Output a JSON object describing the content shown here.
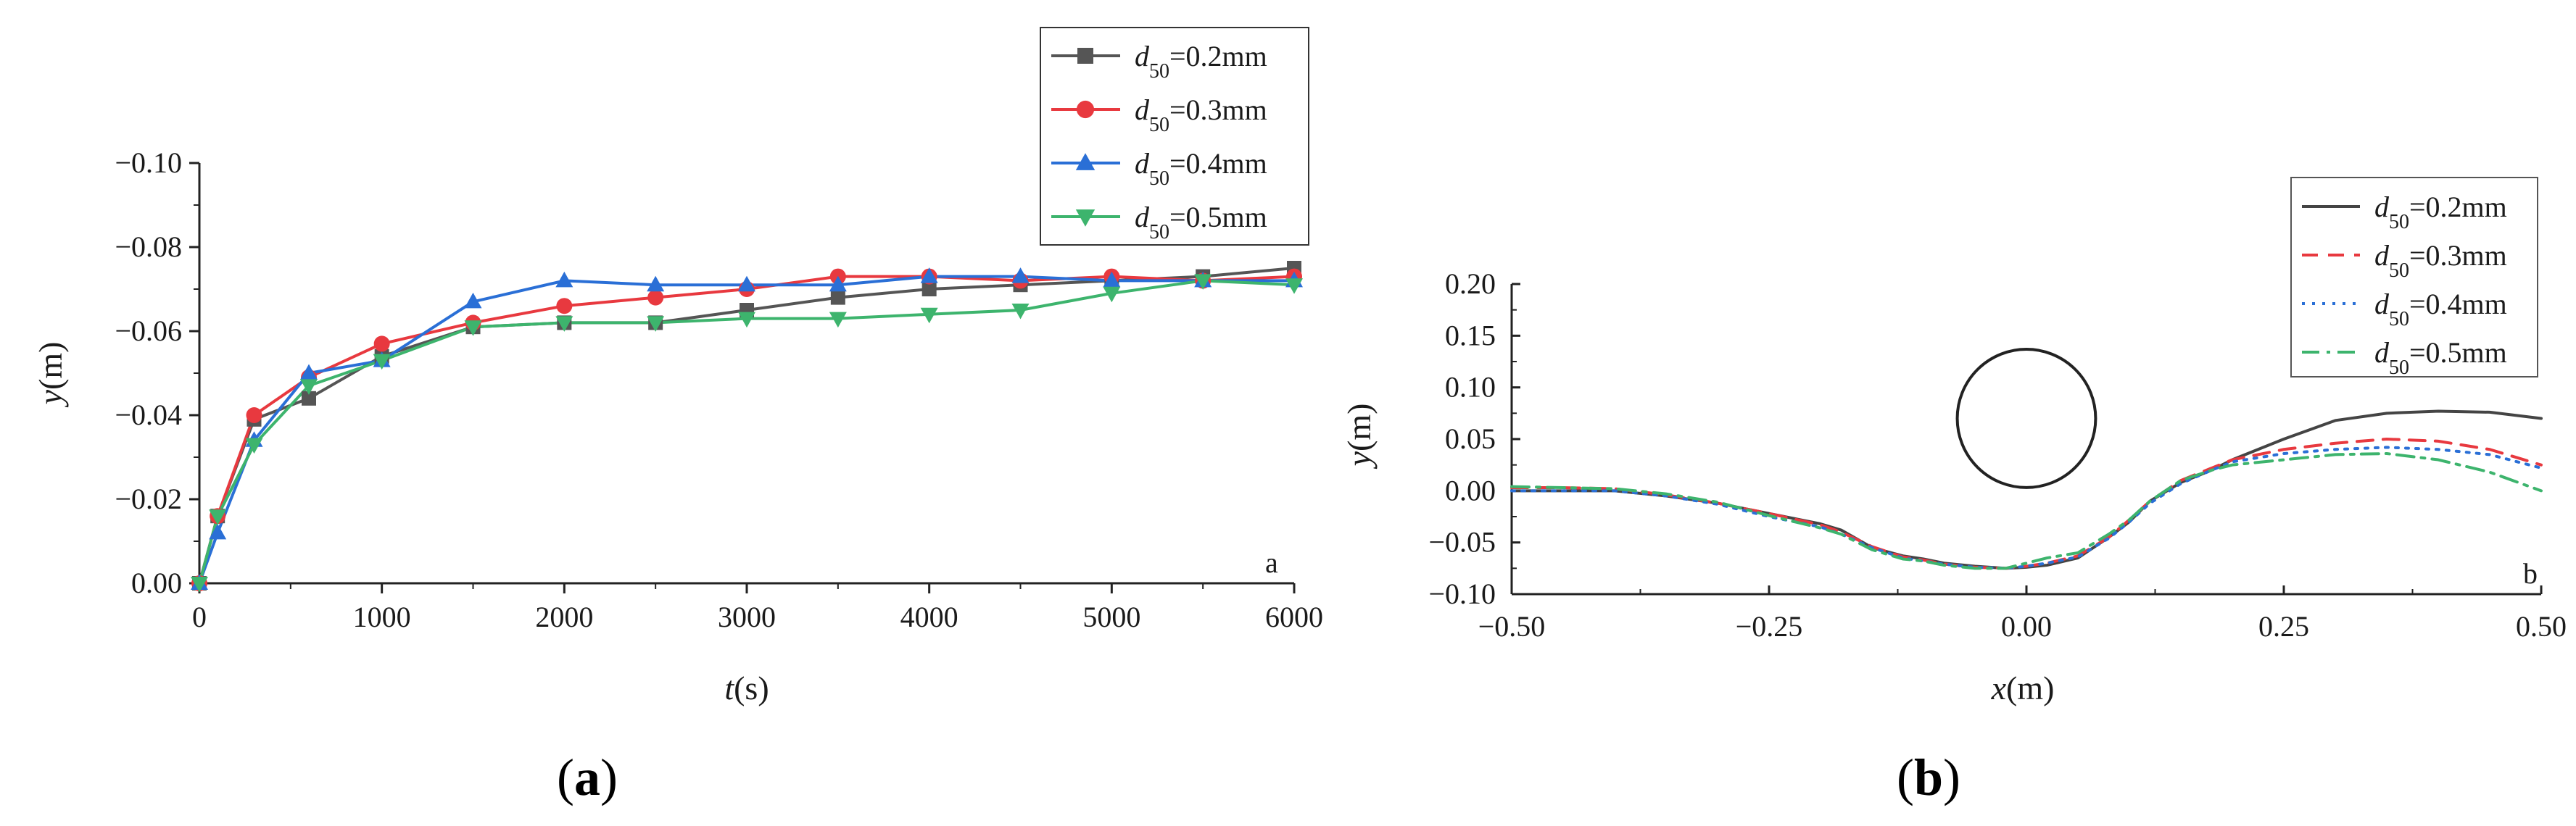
{
  "chart_data": [
    {
      "type": "line",
      "panel_label": "a",
      "caption": "(a)",
      "caption_letter": "a",
      "xlabel_var": "t",
      "xlabel_unit": "(s)",
      "ylabel_var": "y",
      "ylabel_unit": "(m)",
      "xlim": [
        0,
        6000
      ],
      "ylim": [
        0,
        -0.1
      ],
      "xticks": [
        0,
        1000,
        2000,
        3000,
        4000,
        5000,
        6000
      ],
      "xtick_labels": [
        "0",
        "1000",
        "2000",
        "3000",
        "4000",
        "5000",
        "6000"
      ],
      "yticks": [
        0,
        -0.02,
        -0.04,
        -0.06,
        -0.08,
        -0.1
      ],
      "ytick_labels": [
        "0.00",
        "−0.02",
        "−0.04",
        "−0.06",
        "−0.08",
        "−0.10"
      ],
      "legend_position": "top-right",
      "x": [
        0,
        100,
        300,
        600,
        1000,
        1500,
        2000,
        2500,
        3000,
        3500,
        4000,
        4500,
        5000,
        5500,
        6000
      ],
      "series": [
        {
          "name": "d50=0.2mm",
          "name_sub": "50",
          "name_rest": "=0.2mm",
          "color": "#555555",
          "marker": "square",
          "values": [
            0,
            -0.016,
            -0.039,
            -0.044,
            -0.054,
            -0.061,
            -0.062,
            -0.062,
            -0.065,
            -0.068,
            -0.07,
            -0.071,
            -0.072,
            -0.073,
            -0.075
          ]
        },
        {
          "name": "d50=0.3mm",
          "name_sub": "50",
          "name_rest": "=0.3mm",
          "color": "#e8393f",
          "marker": "circle",
          "values": [
            0,
            -0.016,
            -0.04,
            -0.049,
            -0.057,
            -0.062,
            -0.066,
            -0.068,
            -0.07,
            -0.073,
            -0.073,
            -0.072,
            -0.073,
            -0.072,
            -0.073
          ]
        },
        {
          "name": "d50=0.4mm",
          "name_sub": "50",
          "name_rest": "=0.4mm",
          "color": "#2a6fd6",
          "marker": "triangle-up",
          "values": [
            0,
            -0.012,
            -0.034,
            -0.05,
            -0.053,
            -0.067,
            -0.072,
            -0.071,
            -0.071,
            -0.071,
            -0.073,
            -0.073,
            -0.072,
            -0.072,
            -0.072
          ]
        },
        {
          "name": "d50=0.5mm",
          "name_sub": "50",
          "name_rest": "=0.5mm",
          "color": "#3db46d",
          "marker": "triangle-down",
          "values": [
            0,
            -0.016,
            -0.033,
            -0.047,
            -0.053,
            -0.061,
            -0.062,
            -0.062,
            -0.063,
            -0.063,
            -0.064,
            -0.065,
            -0.069,
            -0.072,
            -0.071
          ]
        }
      ]
    },
    {
      "type": "line",
      "panel_label": "b",
      "caption": "(b)",
      "caption_letter": "b",
      "xlabel_var": "x",
      "xlabel_unit": "(m)",
      "ylabel_var": "y",
      "ylabel_unit": "(m)",
      "xlim": [
        -0.5,
        0.5
      ],
      "ylim": [
        -0.1,
        0.2
      ],
      "xticks": [
        -0.5,
        -0.25,
        0,
        0.25,
        0.5
      ],
      "xtick_labels": [
        "−0.50",
        "−0.25",
        "0.00",
        "0.25",
        "0.50"
      ],
      "yticks": [
        -0.1,
        -0.05,
        0,
        0.05,
        0.1,
        0.15,
        0.2
      ],
      "ytick_labels": [
        "−0.10",
        "−0.05",
        "0.00",
        "0.05",
        "0.10",
        "0.15",
        "0.20"
      ],
      "legend_position": "top-right",
      "annotation": "circular pipe centered at x=0.00, y=0.07, diameter ~0.14",
      "pipe": {
        "cx": 0.0,
        "cy": 0.07,
        "r": 0.07
      },
      "x": [
        -0.5,
        -0.45,
        -0.4,
        -0.35,
        -0.3,
        -0.25,
        -0.2,
        -0.18,
        -0.15,
        -0.12,
        -0.1,
        -0.08,
        -0.05,
        -0.02,
        0,
        0.02,
        0.05,
        0.08,
        0.1,
        0.12,
        0.15,
        0.18,
        0.2,
        0.25,
        0.3,
        0.35,
        0.4,
        0.45,
        0.5
      ],
      "series": [
        {
          "name": "d50=0.2mm",
          "name_sub": "50",
          "name_rest": "=0.2mm",
          "color": "#444444",
          "dash": "solid",
          "values": [
            0.0,
            0.0,
            0.0,
            -0.005,
            -0.012,
            -0.022,
            -0.032,
            -0.038,
            -0.055,
            -0.063,
            -0.066,
            -0.07,
            -0.073,
            -0.075,
            -0.074,
            -0.072,
            -0.065,
            -0.045,
            -0.03,
            -0.01,
            0.008,
            0.02,
            0.03,
            0.05,
            0.068,
            0.075,
            0.077,
            0.076,
            0.07
          ]
        },
        {
          "name": "d50=0.3mm",
          "name_sub": "50",
          "name_rest": "=0.3mm",
          "color": "#e8393f",
          "dash": "dashed",
          "values": [
            0.003,
            0.003,
            0.002,
            -0.004,
            -0.012,
            -0.022,
            -0.033,
            -0.04,
            -0.054,
            -0.064,
            -0.067,
            -0.071,
            -0.074,
            -0.075,
            -0.073,
            -0.07,
            -0.063,
            -0.045,
            -0.028,
            -0.01,
            0.01,
            0.022,
            0.03,
            0.04,
            0.046,
            0.05,
            0.048,
            0.04,
            0.025
          ]
        },
        {
          "name": "d50=0.4mm",
          "name_sub": "50",
          "name_rest": "=0.4mm",
          "color": "#2a6fd6",
          "dash": "dotted",
          "values": [
            0.0,
            0.0,
            0.0,
            -0.005,
            -0.013,
            -0.025,
            -0.035,
            -0.042,
            -0.055,
            -0.065,
            -0.068,
            -0.071,
            -0.074,
            -0.075,
            -0.073,
            -0.07,
            -0.064,
            -0.046,
            -0.03,
            -0.012,
            0.007,
            0.02,
            0.028,
            0.036,
            0.04,
            0.042,
            0.04,
            0.035,
            0.022
          ]
        },
        {
          "name": "d50=0.5mm",
          "name_sub": "50",
          "name_rest": "=0.5mm",
          "color": "#3db46d",
          "dash": "dashdot",
          "values": [
            0.004,
            0.003,
            0.002,
            -0.003,
            -0.011,
            -0.024,
            -0.036,
            -0.042,
            -0.057,
            -0.066,
            -0.068,
            -0.072,
            -0.075,
            -0.075,
            -0.07,
            -0.065,
            -0.06,
            -0.042,
            -0.028,
            -0.01,
            0.01,
            0.02,
            0.025,
            0.03,
            0.035,
            0.036,
            0.03,
            0.018,
            0.0
          ]
        }
      ]
    }
  ]
}
